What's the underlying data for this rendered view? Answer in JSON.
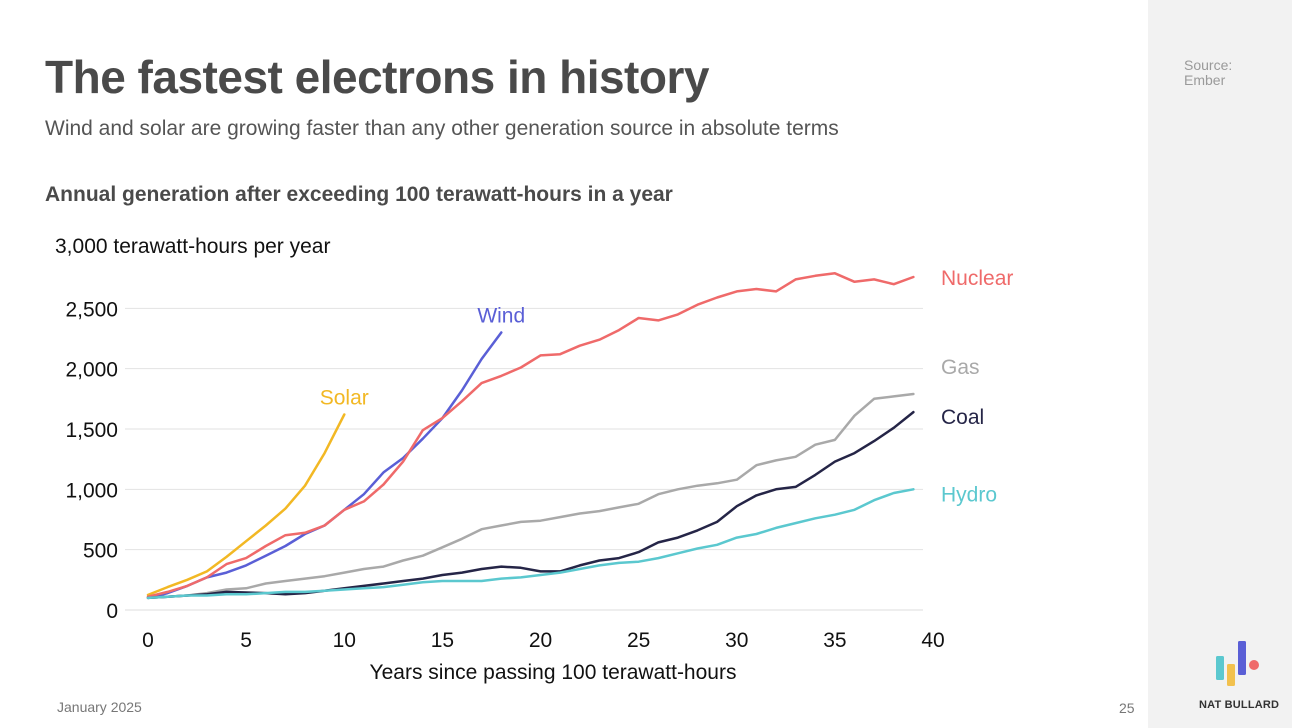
{
  "slide": {
    "title": "The fastest electrons in history",
    "subtitle": "Wind and solar are growing faster than any other generation source in absolute terms",
    "chart_title": "Annual generation after exceeding 100 terawatt-hours in a year",
    "source_label": "Source:",
    "source_name": "Ember",
    "date": "January 2025",
    "page_number": "25",
    "brand": "NAT BULLARD",
    "logo_colors": [
      "#5bc8cf",
      "#f2c14e",
      "#5a5fd6",
      "#ef6a6a"
    ]
  },
  "chart_data": {
    "type": "line",
    "title": "Annual generation after exceeding 100 terawatt-hours in a year",
    "ylabel": "3,000 terawatt-hours per year",
    "xlabel": "Years since passing 100 terawatt-hours",
    "xlim": [
      0,
      40
    ],
    "ylim": [
      0,
      3000
    ],
    "x_ticks": [
      0,
      5,
      10,
      15,
      20,
      25,
      30,
      35,
      40
    ],
    "x_tick_labels": [
      "0",
      "5",
      "10",
      "15",
      "20",
      "25",
      "30",
      "35",
      "40"
    ],
    "y_ticks": [
      0,
      500,
      1000,
      1500,
      2000,
      2500
    ],
    "y_tick_labels": [
      "0",
      "500",
      "1,000",
      "1,500",
      "2,000",
      "2,500"
    ],
    "grid": true,
    "series": [
      {
        "name": "Solar",
        "color": "#f2b824",
        "label_pos": "above-end",
        "x": [
          0,
          1,
          2,
          3,
          4,
          5,
          6,
          7,
          8,
          9,
          10
        ],
        "values": [
          125,
          190,
          250,
          320,
          440,
          570,
          700,
          840,
          1030,
          1300,
          1620
        ]
      },
      {
        "name": "Wind",
        "color": "#5a5fd6",
        "label_pos": "above-end",
        "x": [
          0,
          1,
          2,
          3,
          4,
          5,
          6,
          7,
          8,
          9,
          10,
          11,
          12,
          13,
          14,
          15,
          16,
          17,
          18
        ],
        "values": [
          100,
          140,
          200,
          270,
          310,
          370,
          450,
          530,
          630,
          700,
          830,
          960,
          1140,
          1260,
          1420,
          1590,
          1820,
          2080,
          2300
        ]
      },
      {
        "name": "Nuclear",
        "color": "#ef6a6a",
        "label_pos": "right",
        "x": [
          0,
          1,
          2,
          3,
          4,
          5,
          6,
          7,
          8,
          9,
          10,
          11,
          12,
          13,
          14,
          15,
          16,
          17,
          18,
          19,
          20,
          21,
          22,
          23,
          24,
          25,
          26,
          27,
          28,
          29,
          30,
          31,
          32,
          33,
          34,
          35,
          36,
          37,
          38,
          39
        ],
        "values": [
          110,
          150,
          200,
          270,
          380,
          430,
          530,
          620,
          640,
          700,
          830,
          900,
          1040,
          1230,
          1490,
          1590,
          1730,
          1880,
          1940,
          2010,
          2110,
          2120,
          2190,
          2240,
          2320,
          2420,
          2400,
          2450,
          2530,
          2590,
          2640,
          2660,
          2640,
          2740,
          2770,
          2790,
          2720,
          2740,
          2700,
          2760
        ]
      },
      {
        "name": "Gas",
        "color": "#a9a9a9",
        "label_pos": "right",
        "x": [
          0,
          1,
          2,
          3,
          4,
          5,
          6,
          7,
          8,
          9,
          10,
          11,
          12,
          13,
          14,
          15,
          16,
          17,
          18,
          19,
          20,
          21,
          22,
          23,
          24,
          25,
          26,
          27,
          28,
          29,
          30,
          31,
          32,
          33,
          34,
          35,
          36,
          37,
          38,
          39
        ],
        "values": [
          100,
          110,
          120,
          140,
          170,
          180,
          220,
          240,
          260,
          280,
          310,
          340,
          360,
          410,
          450,
          520,
          590,
          670,
          700,
          730,
          740,
          770,
          800,
          820,
          850,
          880,
          960,
          1000,
          1030,
          1050,
          1080,
          1200,
          1240,
          1270,
          1370,
          1410,
          1610,
          1750,
          1770,
          1790
        ]
      },
      {
        "name": "Coal",
        "color": "#252547",
        "label_pos": "right",
        "x": [
          0,
          1,
          2,
          3,
          4,
          5,
          6,
          7,
          8,
          9,
          10,
          11,
          12,
          13,
          14,
          15,
          16,
          17,
          18,
          19,
          20,
          21,
          22,
          23,
          24,
          25,
          26,
          27,
          28,
          29,
          30,
          31,
          32,
          33,
          34,
          35,
          36,
          37,
          38,
          39
        ],
        "values": [
          100,
          110,
          120,
          130,
          150,
          145,
          140,
          130,
          140,
          160,
          180,
          200,
          220,
          240,
          260,
          290,
          310,
          340,
          360,
          350,
          320,
          320,
          370,
          410,
          430,
          480,
          560,
          600,
          660,
          730,
          860,
          950,
          1000,
          1020,
          1120,
          1230,
          1300,
          1400,
          1510,
          1640
        ]
      },
      {
        "name": "Hydro",
        "color": "#5bc8cf",
        "label_pos": "right",
        "x": [
          0,
          1,
          2,
          3,
          4,
          5,
          6,
          7,
          8,
          9,
          10,
          11,
          12,
          13,
          14,
          15,
          16,
          17,
          18,
          19,
          20,
          21,
          22,
          23,
          24,
          25,
          26,
          27,
          28,
          29,
          30,
          31,
          32,
          33,
          34,
          35,
          36,
          37,
          38,
          39
        ],
        "values": [
          100,
          110,
          120,
          120,
          130,
          130,
          140,
          150,
          150,
          160,
          170,
          180,
          190,
          210,
          230,
          240,
          240,
          240,
          260,
          270,
          290,
          310,
          340,
          370,
          390,
          400,
          430,
          470,
          510,
          540,
          600,
          630,
          680,
          720,
          760,
          790,
          830,
          910,
          970,
          1000
        ]
      }
    ]
  }
}
